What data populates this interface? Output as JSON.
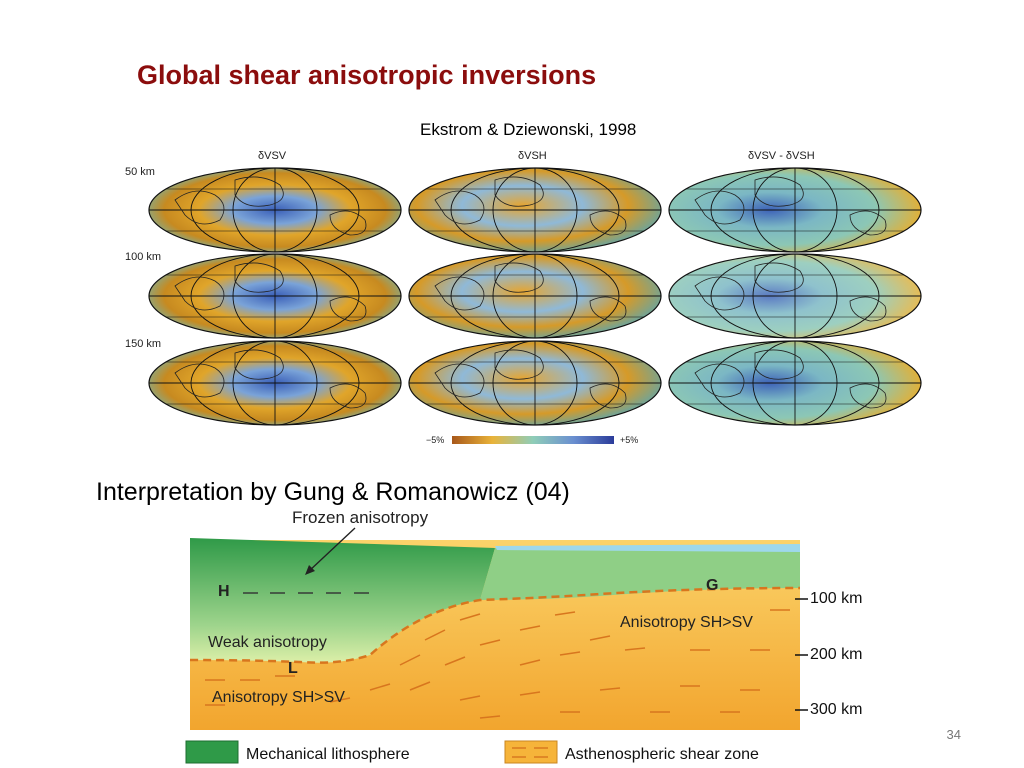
{
  "slide": {
    "title": "Global shear anisotropic inversions",
    "citation": "Ekstrom & Dziewonski, 1998",
    "subtitle": "Interpretation by Gung & Romanowicz (04)",
    "page_number": "34"
  },
  "maps": {
    "columns": [
      "δVSV",
      "δVSH",
      "δVSV - δVSH"
    ],
    "depths": [
      "50 km",
      "100 km",
      "150 km"
    ],
    "scale": {
      "min_label": "−5%",
      "max_label": "+5%"
    }
  },
  "diagram": {
    "callout": "Frozen anisotropy",
    "labels": {
      "h": "H",
      "g": "G",
      "l": "L",
      "weak": "Weak anisotropy",
      "aniso_right": "Anisotropy SH>SV",
      "aniso_left": "Anisotropy SH>SV"
    },
    "depth_ticks": [
      "100 km",
      "200 km",
      "300 km"
    ],
    "legend": [
      "Mechanical lithosphere",
      "Asthenospheric shear zone"
    ],
    "colors": {
      "lithosphere_dark": "#2f9a48",
      "lithosphere_light": "#8fcf86",
      "asthenosphere": "#f6b43a",
      "ocean": "#9ed8ec",
      "dashes": "#d8761e"
    }
  }
}
